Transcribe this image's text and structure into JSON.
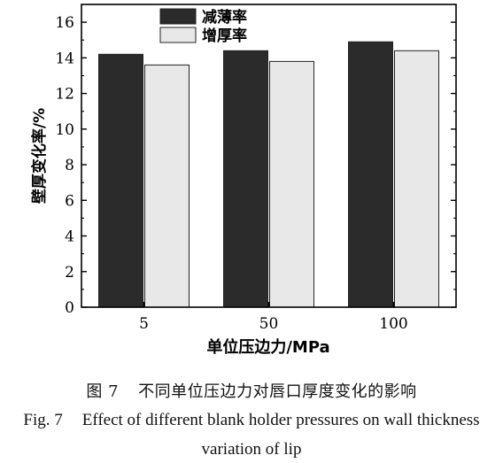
{
  "chart_data": {
    "type": "bar",
    "categories": [
      "5",
      "50",
      "100"
    ],
    "series": [
      {
        "name": "减薄率",
        "values": [
          14.2,
          14.4,
          14.9
        ],
        "color": "#2b2b2b"
      },
      {
        "name": "增厚率",
        "values": [
          13.6,
          13.8,
          14.4
        ],
        "color": "#e8e8e8"
      }
    ],
    "xlabel": "单位压边力/MPa",
    "ylabel": "壁厚变化率/%",
    "ylim": [
      0,
      17
    ],
    "yticks": [
      0,
      2,
      4,
      6,
      8,
      10,
      12,
      14,
      16
    ],
    "legend_position": "top-center",
    "grid": false
  },
  "caption": {
    "cn_label": "图 7",
    "cn_text": "不同单位压边力对唇口厚度变化的影响",
    "en_label": "Fig. 7",
    "en_line1": "Effect of different blank holder pressures on wall thickness",
    "en_line2": "variation of lip"
  }
}
